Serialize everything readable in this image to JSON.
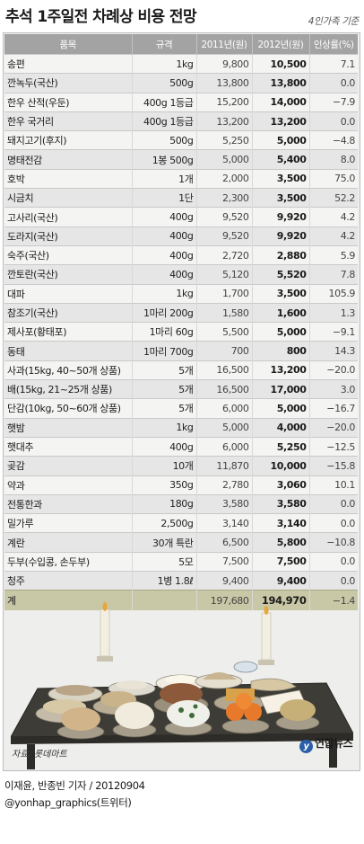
{
  "header": {
    "title": "추석 1주일전 차례상 비용 전망",
    "subtitle": "4인가족 기준"
  },
  "chart_data": {
    "type": "table",
    "columns": [
      "품목",
      "규격",
      "2011년(원)",
      "2012년(원)",
      "인상률(%)"
    ],
    "rows": [
      {
        "item": "송편",
        "spec": "1kg",
        "y2011": "9,800",
        "y2012": "10,500",
        "change": "7.1"
      },
      {
        "item": "깐녹두(국산)",
        "spec": "500g",
        "y2011": "13,800",
        "y2012": "13,800",
        "change": "0.0"
      },
      {
        "item": "한우 산적(우둔)",
        "spec": "400g 1등급",
        "y2011": "15,200",
        "y2012": "14,000",
        "change": "−7.9"
      },
      {
        "item": "한우 국거리",
        "spec": "400g 1등급",
        "y2011": "13,200",
        "y2012": "13,200",
        "change": "0.0"
      },
      {
        "item": "돼지고기(후지)",
        "spec": "500g",
        "y2011": "5,250",
        "y2012": "5,000",
        "change": "−4.8"
      },
      {
        "item": "명태전감",
        "spec": "1봉 500g",
        "y2011": "5,000",
        "y2012": "5,400",
        "change": "8.0"
      },
      {
        "item": "호박",
        "spec": "1개",
        "y2011": "2,000",
        "y2012": "3,500",
        "change": "75.0"
      },
      {
        "item": "시금치",
        "spec": "1단",
        "y2011": "2,300",
        "y2012": "3,500",
        "change": "52.2"
      },
      {
        "item": "고사리(국산)",
        "spec": "400g",
        "y2011": "9,520",
        "y2012": "9,920",
        "change": "4.2"
      },
      {
        "item": "도라지(국산)",
        "spec": "400g",
        "y2011": "9,520",
        "y2012": "9,920",
        "change": "4.2"
      },
      {
        "item": "숙주(국산)",
        "spec": "400g",
        "y2011": "2,720",
        "y2012": "2,880",
        "change": "5.9"
      },
      {
        "item": "깐토란(국산)",
        "spec": "400g",
        "y2011": "5,120",
        "y2012": "5,520",
        "change": "7.8"
      },
      {
        "item": "대파",
        "spec": "1kg",
        "y2011": "1,700",
        "y2012": "3,500",
        "change": "105.9"
      },
      {
        "item": "참조기(국산)",
        "spec": "1마리 200g",
        "y2011": "1,580",
        "y2012": "1,600",
        "change": "1.3"
      },
      {
        "item": "제사포(황태포)",
        "spec": "1마리 60g",
        "y2011": "5,500",
        "y2012": "5,000",
        "change": "−9.1"
      },
      {
        "item": "동태",
        "spec": "1마리 700g",
        "y2011": "700",
        "y2012": "800",
        "change": "14.3"
      },
      {
        "item": "사과(15kg, 40~50개 상품)",
        "spec": "5개",
        "y2011": "16,500",
        "y2012": "13,200",
        "change": "−20.0"
      },
      {
        "item": "배(15kg, 21~25개 상품)",
        "spec": "5개",
        "y2011": "16,500",
        "y2012": "17,000",
        "change": "3.0"
      },
      {
        "item": "단감(10kg, 50~60개 상품)",
        "spec": "5개",
        "y2011": "6,000",
        "y2012": "5,000",
        "change": "−16.7"
      },
      {
        "item": "햇밤",
        "spec": "1kg",
        "y2011": "5,000",
        "y2012": "4,000",
        "change": "−20.0"
      },
      {
        "item": "햇대추",
        "spec": "400g",
        "y2011": "6,000",
        "y2012": "5,250",
        "change": "−12.5"
      },
      {
        "item": "곶감",
        "spec": "10개",
        "y2011": "11,870",
        "y2012": "10,000",
        "change": "−15.8"
      },
      {
        "item": "약과",
        "spec": "350g",
        "y2011": "2,780",
        "y2012": "3,060",
        "change": "10.1"
      },
      {
        "item": "전통한과",
        "spec": "180g",
        "y2011": "3,580",
        "y2012": "3,580",
        "change": "0.0"
      },
      {
        "item": "밀가루",
        "spec": "2,500g",
        "y2011": "3,140",
        "y2012": "3,140",
        "change": "0.0"
      },
      {
        "item": "계란",
        "spec": "30개 특란",
        "y2011": "6,500",
        "y2012": "5,800",
        "change": "−10.8"
      },
      {
        "item": "두부(수입콩, 손두부)",
        "spec": "5모",
        "y2011": "7,500",
        "y2012": "7,500",
        "change": "0.0"
      },
      {
        "item": "청주",
        "spec": "1병 1.8ℓ",
        "y2011": "9,400",
        "y2012": "9,400",
        "change": "0.0"
      }
    ],
    "total": {
      "item": "계",
      "spec": "",
      "y2011": "197,680",
      "y2012": "194,970",
      "change": "−1.4"
    }
  },
  "footer": {
    "source": "자료/ 롯데마트",
    "logo_text": "연합뉴스",
    "credit": "이재윤, 반종빈 기자 / 20120904",
    "twitter": "@yonhap_graphics(트위터)"
  },
  "colors": {
    "header_bg": "#a3a3a3",
    "total_bg": "#c8c7a6",
    "row_light": "#f4f4f2",
    "row_dark": "#e6e6e6",
    "logo": "#2b5da8"
  }
}
